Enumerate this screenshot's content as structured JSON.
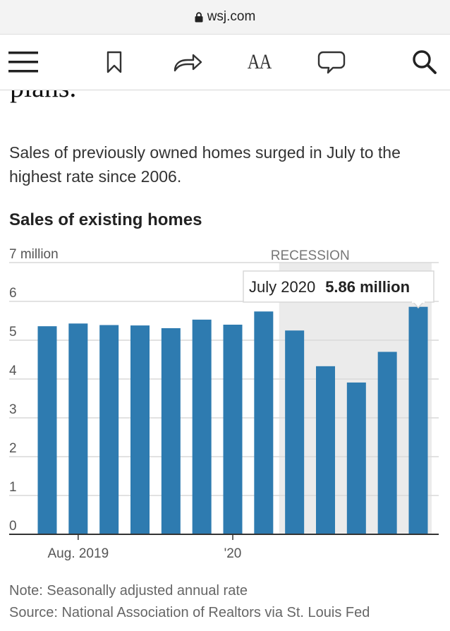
{
  "browser": {
    "url": "wsj.com"
  },
  "article": {
    "clipped_text": "plans.",
    "lede": "Sales of previously owned homes surged in July to the highest rate since 2006."
  },
  "chart_data": {
    "type": "bar",
    "title": "Sales of existing homes",
    "unit": "million",
    "y_ticks": [
      "7 million",
      "6",
      "5",
      "4",
      "3",
      "2",
      "1",
      "0"
    ],
    "ylim": [
      0,
      7
    ],
    "x_tick_labels": [
      {
        "label": "Aug. 2019",
        "category": "Aug. 2019"
      },
      {
        "label": "'20",
        "category": "Jan. 2020"
      }
    ],
    "categories": [
      "Jul. 2019",
      "Aug. 2019",
      "Sep. 2019",
      "Oct. 2019",
      "Nov. 2019",
      "Dec. 2019",
      "Jan. 2020",
      "Feb. 2020",
      "Mar. 2020",
      "Apr. 2020",
      "May 2020",
      "Jun. 2020",
      "Jul. 2020"
    ],
    "values": [
      5.36,
      5.43,
      5.39,
      5.38,
      5.31,
      5.53,
      5.4,
      5.74,
      5.25,
      4.33,
      3.91,
      4.7,
      5.86
    ],
    "bar_color": "#2e7bb0",
    "shaded_region": {
      "label": "RECESSION",
      "start": "Feb. 2020",
      "end": "Jul. 2020",
      "color": "#ebebeb"
    },
    "tooltip": {
      "label": "July 2020",
      "value": "5.86 million",
      "category": "Jul. 2020"
    },
    "grid": true,
    "note": "Note: Seasonally adjusted annual rate",
    "source": "Source: National Association of Realtors via St. Louis Fed"
  }
}
